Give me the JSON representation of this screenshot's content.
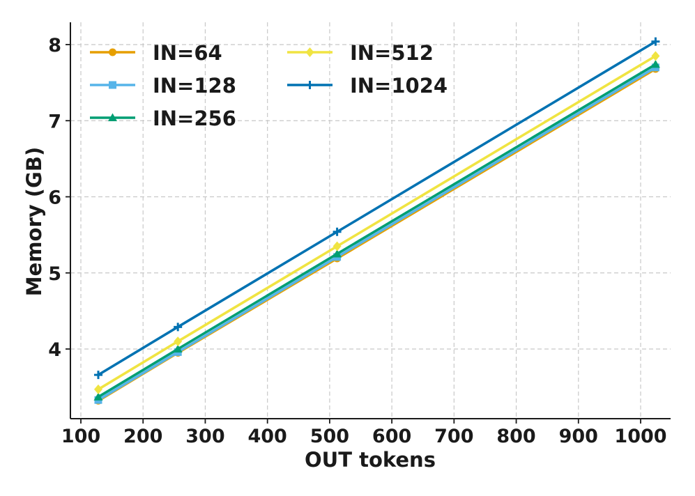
{
  "chart_data": {
    "type": "line",
    "xlabel": "OUT tokens",
    "ylabel": "Memory (GB)",
    "xlim": [
      100,
      1060
    ],
    "ylim": [
      3.15,
      8.3
    ],
    "xticks": [
      100,
      200,
      300,
      400,
      500,
      600,
      700,
      800,
      900,
      1000
    ],
    "yticks": [
      4,
      5,
      6,
      7,
      8
    ],
    "grid": true,
    "legend_placement": "top-left",
    "x": [
      128,
      256,
      512,
      1024
    ],
    "series": [
      {
        "name": "IN=64",
        "color": "#E69F00",
        "marker": "circle",
        "values": [
          3.32,
          3.95,
          5.19,
          7.68
        ]
      },
      {
        "name": "IN=128",
        "color": "#56B4E9",
        "marker": "square",
        "values": [
          3.33,
          3.96,
          5.21,
          7.7
        ]
      },
      {
        "name": "IN=256",
        "color": "#009E73",
        "marker": "triangle",
        "values": [
          3.37,
          4.0,
          5.25,
          7.74
        ]
      },
      {
        "name": "IN=512",
        "color": "#F0E442",
        "marker": "diamond",
        "values": [
          3.47,
          4.1,
          5.35,
          7.85
        ]
      },
      {
        "name": "IN=1024",
        "color": "#0072B2",
        "marker": "plus",
        "values": [
          3.66,
          4.29,
          5.54,
          8.04
        ]
      }
    ]
  }
}
